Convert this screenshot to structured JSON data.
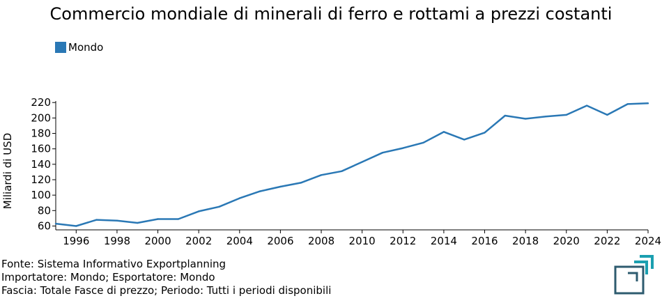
{
  "title": "Commercio mondiale di minerali di ferro e rottami a prezzi costanti",
  "legend": {
    "label": "Mondo",
    "color": "#2a78b5"
  },
  "footer": {
    "line1": "Fonte: Sistema Informativo Exportplanning",
    "line2": "Importatore: Mondo; Esportatore: Mondo",
    "line3": "Fascia: Totale Fasce di prezzo; Periodo: Tutti i periodi disponibili"
  },
  "logo": {
    "icon": "exportplanning-logo-icon",
    "colors": [
      "#1b9fb0",
      "#2e5b6f"
    ]
  },
  "chart_data": {
    "type": "line",
    "title": "Commercio mondiale di minerali di ferro e rottami a prezzi costanti",
    "xlabel": "",
    "ylabel": "Miliardi di USD",
    "xlim": [
      1995,
      2024
    ],
    "ylim": [
      55,
      222
    ],
    "xticks": [
      1996,
      1998,
      2000,
      2002,
      2004,
      2006,
      2008,
      2010,
      2012,
      2014,
      2016,
      2018,
      2020,
      2022,
      2024
    ],
    "yticks": [
      60,
      80,
      100,
      120,
      140,
      160,
      180,
      200,
      220
    ],
    "grid": false,
    "legend_position": "top-left",
    "series": [
      {
        "name": "Mondo",
        "color": "#2a78b5",
        "x": [
          1995,
          1996,
          1997,
          1998,
          1999,
          2000,
          2001,
          2002,
          2003,
          2004,
          2005,
          2006,
          2007,
          2008,
          2009,
          2010,
          2011,
          2012,
          2013,
          2014,
          2015,
          2016,
          2017,
          2018,
          2019,
          2020,
          2021,
          2022,
          2023,
          2024
        ],
        "values": [
          63,
          60,
          68,
          67,
          64,
          69,
          69,
          79,
          85,
          96,
          105,
          111,
          116,
          126,
          131,
          143,
          155,
          161,
          168,
          182,
          172,
          181,
          203,
          199,
          202,
          204,
          216,
          204,
          218,
          219
        ]
      }
    ]
  }
}
